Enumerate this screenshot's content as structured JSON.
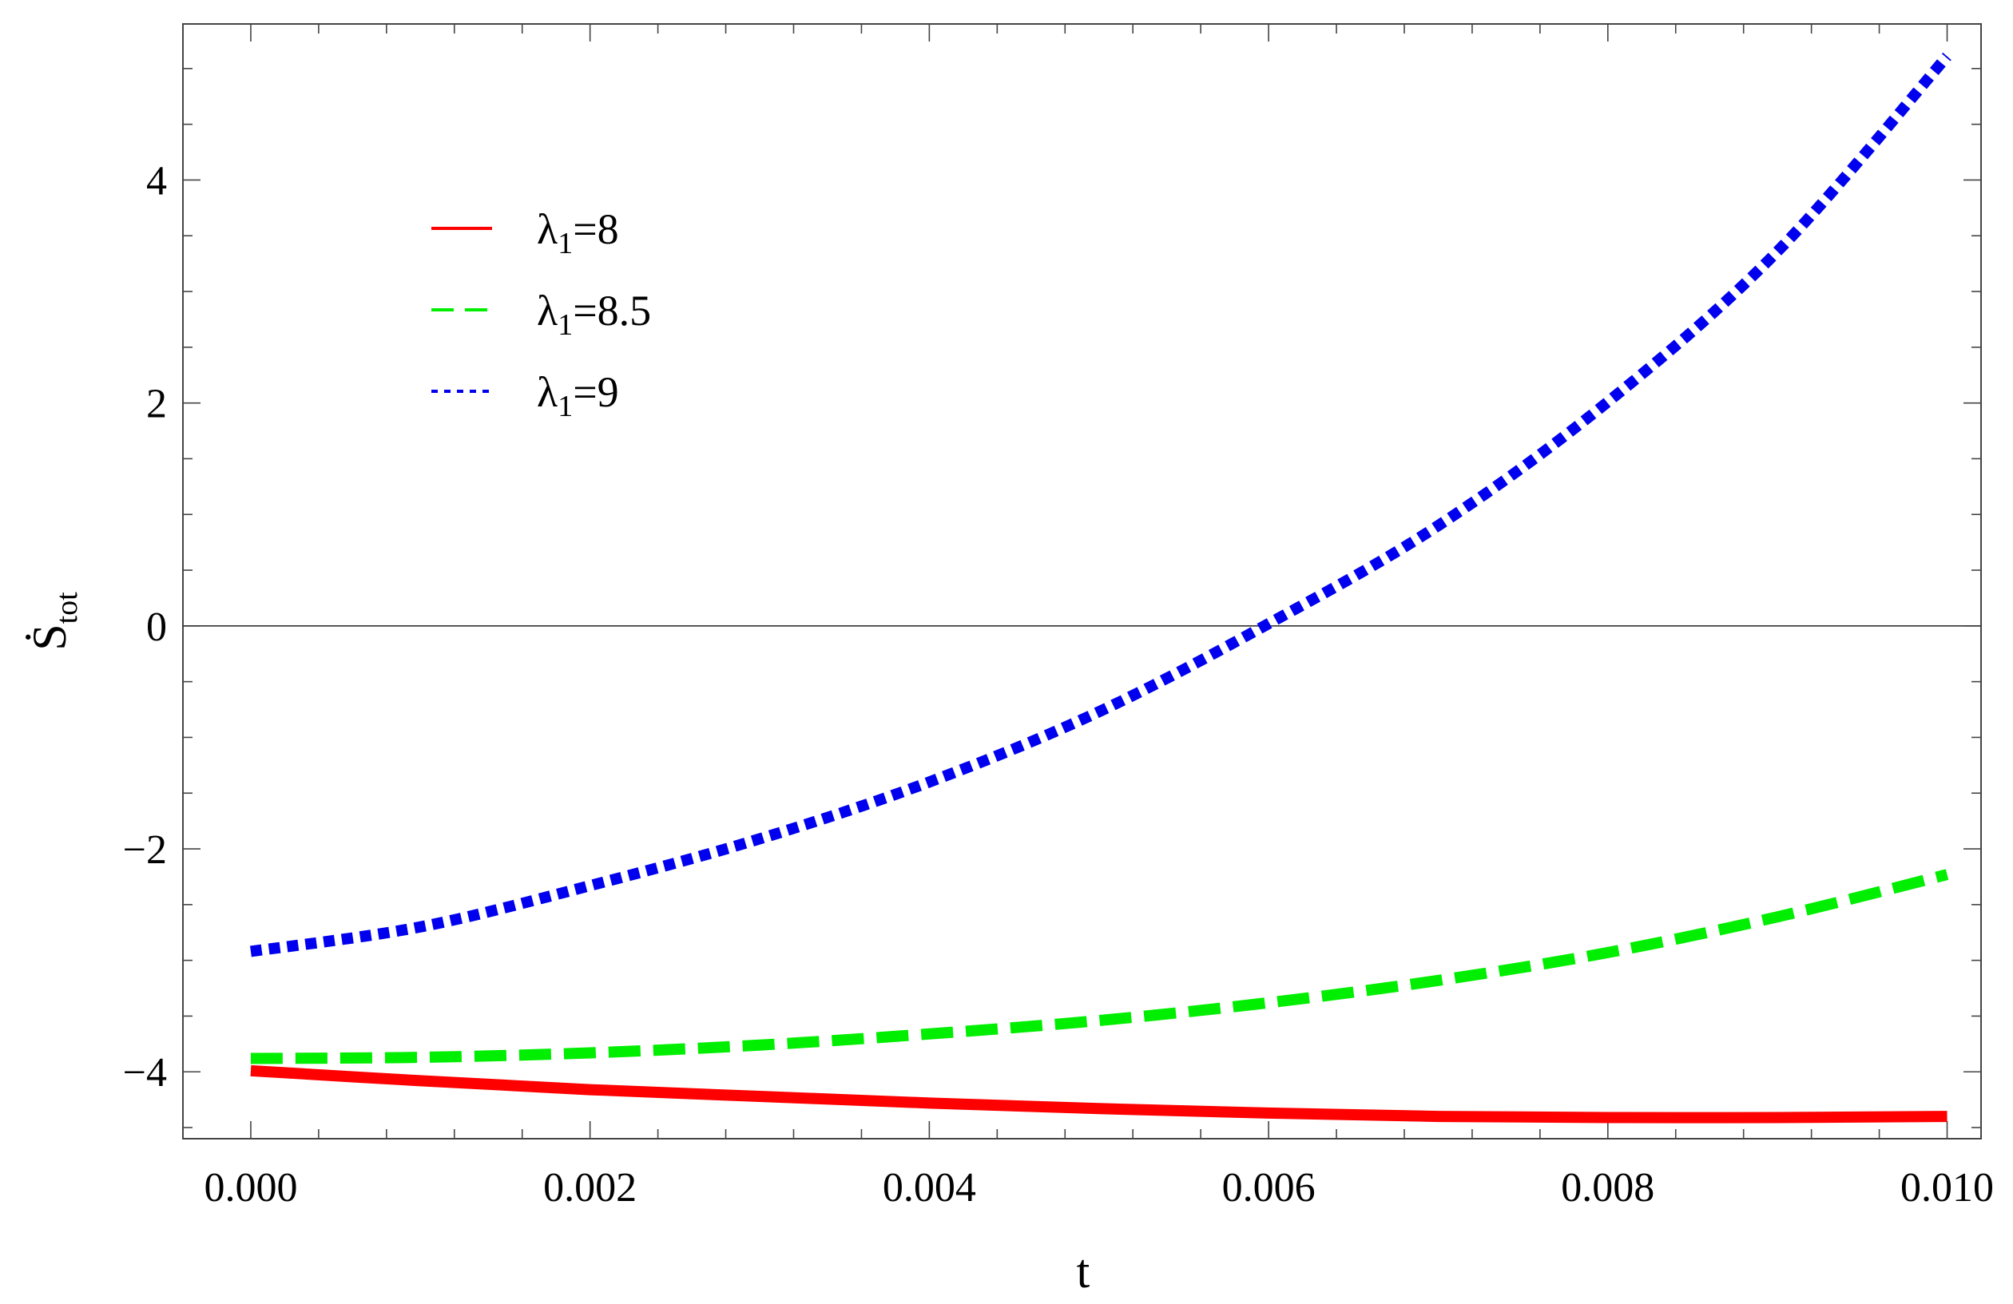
{
  "chart_data": {
    "type": "line",
    "title": "",
    "xlabel": "t",
    "ylabel": {
      "main": "Ṡ",
      "sub": "tot"
    },
    "xlim": [
      -0.0004,
      0.0102
    ],
    "ylim": [
      -4.6,
      5.4
    ],
    "x_ticks": [
      0.0,
      0.002,
      0.004,
      0.006,
      0.008,
      0.01
    ],
    "x_tick_labels": [
      "0.000",
      "0.002",
      "0.004",
      "0.006",
      "0.008",
      "0.010"
    ],
    "y_ticks": [
      -4,
      -2,
      0,
      2,
      4
    ],
    "y_tick_labels": [
      "−4",
      "−2",
      "0",
      "2",
      "4"
    ],
    "grid": false,
    "zero_line": true,
    "legend_position": "upper-left",
    "series": [
      {
        "name": "λ1=8",
        "legend": {
          "symbol": "λ",
          "sub": "1",
          "rest": "=8"
        },
        "color": "#ff0000",
        "dash": "solid",
        "x": [
          0.0,
          0.001,
          0.002,
          0.003,
          0.004,
          0.005,
          0.006,
          0.007,
          0.008,
          0.009,
          0.01
        ],
        "y": [
          -3.99,
          -4.08,
          -4.16,
          -4.22,
          -4.28,
          -4.33,
          -4.37,
          -4.4,
          -4.41,
          -4.41,
          -4.4
        ]
      },
      {
        "name": "λ1=8.5",
        "legend": {
          "symbol": "λ",
          "sub": "1",
          "rest": "=8.5"
        },
        "color": "#00ee00",
        "dash": "dashed",
        "x": [
          0.0,
          0.001,
          0.002,
          0.003,
          0.004,
          0.005,
          0.006,
          0.007,
          0.008,
          0.009,
          0.01
        ],
        "y": [
          -3.88,
          -3.87,
          -3.83,
          -3.76,
          -3.66,
          -3.54,
          -3.38,
          -3.18,
          -2.93,
          -2.61,
          -2.23
        ]
      },
      {
        "name": "λ1=9",
        "legend": {
          "symbol": "λ",
          "sub": "1",
          "rest": "=9"
        },
        "color": "#0000ee",
        "dash": "dotted",
        "x": [
          0.0,
          0.001,
          0.002,
          0.003,
          0.004,
          0.005,
          0.006,
          0.007,
          0.008,
          0.009,
          0.01
        ],
        "y": [
          -2.92,
          -2.7,
          -2.33,
          -1.91,
          -1.4,
          -0.77,
          0.02,
          0.9,
          2.01,
          3.36,
          5.11
        ]
      }
    ]
  }
}
